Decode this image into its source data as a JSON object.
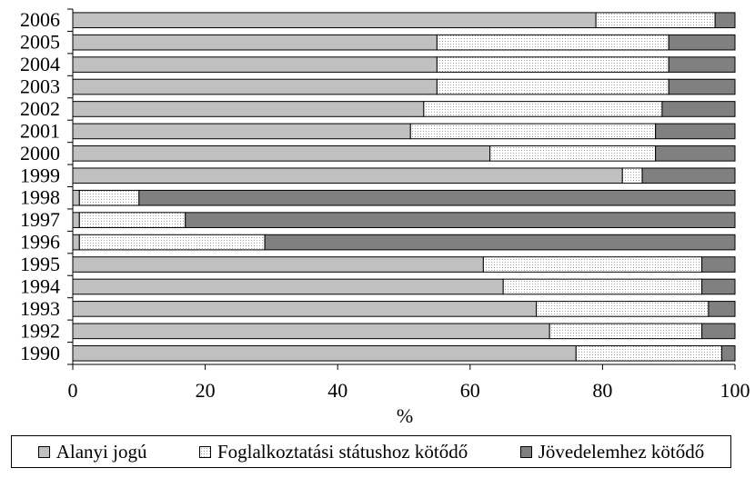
{
  "chart_data": {
    "type": "bar",
    "orientation": "horizontal",
    "stacked": true,
    "categories": [
      "2006",
      "2005",
      "2004",
      "2003",
      "2002",
      "2001",
      "2000",
      "1999",
      "1998",
      "1997",
      "1996",
      "1995",
      "1994",
      "1993",
      "1992",
      "1990"
    ],
    "series": [
      {
        "name": "Alanyi jogú",
        "color": "#c0c0c0",
        "pattern": "solid",
        "values": [
          79,
          55,
          55,
          55,
          53,
          51,
          63,
          83,
          1,
          1,
          1,
          62,
          65,
          70,
          72,
          76
        ]
      },
      {
        "name": "Foglalkoztatási státushoz kötődő",
        "color": "#ffffff",
        "pattern": "dotted",
        "values": [
          18,
          35,
          35,
          35,
          36,
          37,
          25,
          3,
          9,
          16,
          28,
          33,
          30,
          26,
          23,
          22
        ]
      },
      {
        "name": "Jövedelemhez kötődő",
        "color": "#808080",
        "pattern": "solid",
        "values": [
          3,
          10,
          10,
          10,
          11,
          12,
          12,
          14,
          90,
          83,
          71,
          5,
          5,
          4,
          5,
          2
        ]
      }
    ],
    "xlabel": "%",
    "ylabel": "",
    "xlim": [
      0,
      100
    ],
    "xticks": [
      0,
      20,
      40,
      60,
      80,
      100
    ],
    "grid": false,
    "legend_position": "bottom"
  }
}
